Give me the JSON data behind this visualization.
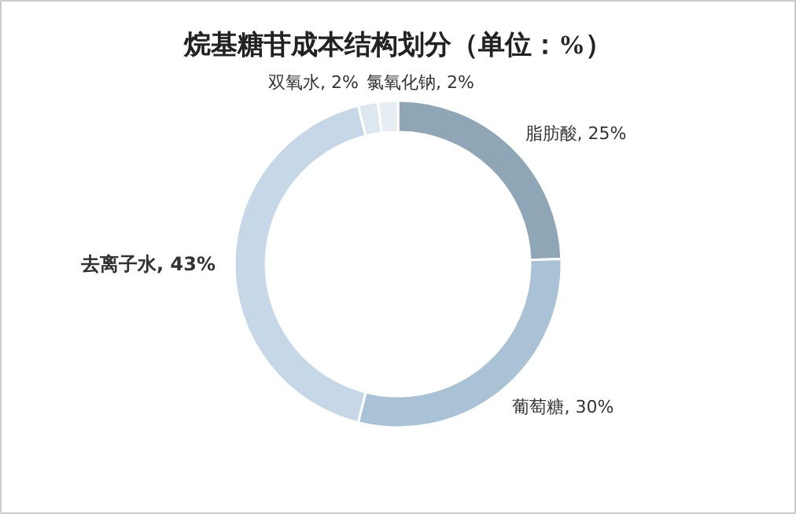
{
  "chart_data": {
    "type": "donut",
    "title": "烷基糖苷成本结构划分（单位：%）",
    "categories": [
      "脂肪酸",
      "葡萄糖",
      "去离子水",
      "双氧水",
      "氯氧化钠"
    ],
    "values": [
      25,
      30,
      43,
      2,
      2
    ],
    "value_labels": [
      ", 25%",
      ", 30%",
      ", 43%",
      ", 2%",
      ", 2%"
    ],
    "colors": [
      "#8fa6b6",
      "#a9c2d6",
      "#c6d8e7",
      "#dce7f0",
      "#e6edf3"
    ]
  }
}
